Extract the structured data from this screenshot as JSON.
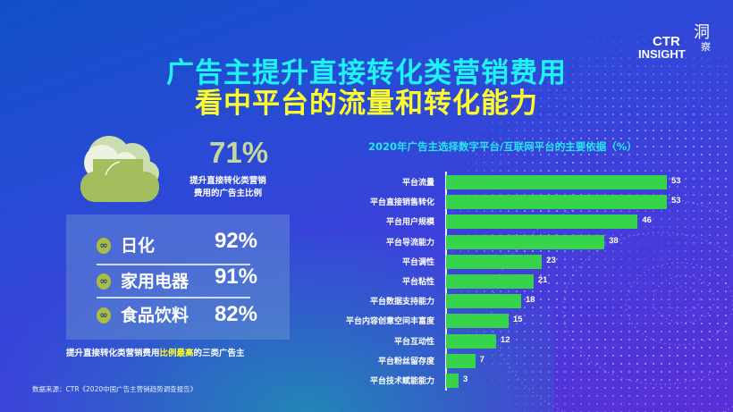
{
  "title": {
    "line1": "广告主提升直接转化类营销费用",
    "line2": "看中平台的流量和转化能力"
  },
  "logo": {
    "text1": "CTR",
    "text2": "INSIGHT",
    "cn1": "洞",
    "cn2": "察"
  },
  "summary": {
    "percent": "71%",
    "caption_line1": "提升直接转化类营销",
    "caption_line2": "费用的广告主比例"
  },
  "industries": [
    {
      "icon": "∞",
      "label": "日化",
      "value": "92%"
    },
    {
      "icon": "∞",
      "label": "家用电器",
      "value": "91%"
    },
    {
      "icon": "∞",
      "label": "食品饮料",
      "value": "82%"
    }
  ],
  "note": {
    "prefix": "提升直接转化类营销费用",
    "highlight": "比例最高",
    "suffix": "的三类广告主"
  },
  "source": "数据来源：CTR《2020中国广告主营销趋势调查报告》",
  "colors": {
    "title1": "#1ef2f2",
    "title2": "#ffff2a",
    "bar": "#36d44a",
    "percent": "#c3d99a"
  },
  "chart_data": {
    "type": "bar",
    "orientation": "horizontal",
    "title": "2020年广告主选择数字平台/互联网平台的主要依据（%）",
    "xlabel": "",
    "ylabel": "",
    "grid": false,
    "categories": [
      "平台流量",
      "平台直接销售转化",
      "平台用户规模",
      "平台导流能力",
      "平台调性",
      "平台粘性",
      "平台数据支持能力",
      "平台内容创意空间丰富度",
      "平台互动性",
      "平台粉丝留存度",
      "平台技术赋能能力"
    ],
    "values": [
      53,
      53,
      46,
      38,
      23,
      21,
      18,
      15,
      12,
      7,
      3
    ],
    "value_labels": [
      "53",
      "53",
      "46",
      "38",
      "23",
      "21",
      "18",
      "15",
      "12",
      "7",
      "3"
    ],
    "xlim": [
      0,
      55
    ]
  }
}
